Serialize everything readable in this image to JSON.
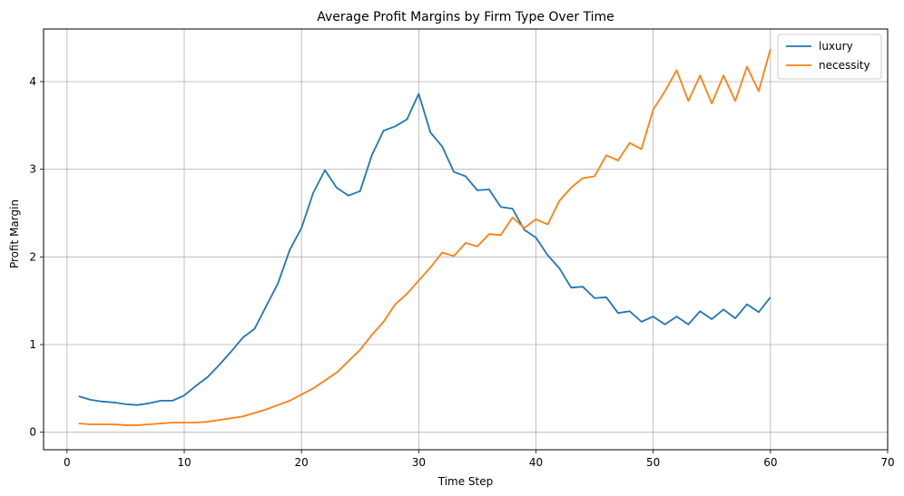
{
  "chart_data": {
    "type": "line",
    "title": "Average Profit Margins by Firm Type Over Time",
    "xlabel": "Time Step",
    "ylabel": "Profit Margin",
    "xlim": [
      -2,
      70
    ],
    "ylim": [
      -0.2,
      4.6
    ],
    "xticks": [
      0,
      10,
      20,
      30,
      40,
      50,
      60,
      70
    ],
    "yticks": [
      0,
      1,
      2,
      3,
      4
    ],
    "grid": true,
    "legend_position": "upper right",
    "x": [
      1,
      2,
      3,
      4,
      5,
      6,
      7,
      8,
      9,
      10,
      11,
      12,
      13,
      14,
      15,
      16,
      17,
      18,
      19,
      20,
      21,
      22,
      23,
      24,
      25,
      26,
      27,
      28,
      29,
      30,
      31,
      32,
      33,
      34,
      35,
      36,
      37,
      38,
      39,
      40,
      41,
      42,
      43,
      44,
      45,
      46,
      47,
      48,
      49,
      50,
      51,
      52,
      53,
      54,
      55,
      56,
      57,
      58,
      59,
      60
    ],
    "series": [
      {
        "name": "luxury",
        "color": "#1f77b4",
        "values": [
          0.41,
          0.37,
          0.35,
          0.34,
          0.32,
          0.31,
          0.33,
          0.36,
          0.36,
          0.42,
          0.53,
          0.63,
          0.77,
          0.92,
          1.08,
          1.18,
          1.44,
          1.7,
          2.08,
          2.33,
          2.73,
          2.99,
          2.79,
          2.7,
          2.75,
          3.16,
          3.44,
          3.49,
          3.57,
          3.86,
          3.42,
          3.26,
          2.97,
          2.92,
          2.76,
          2.77,
          2.57,
          2.55,
          2.31,
          2.22,
          2.02,
          1.87,
          1.65,
          1.66,
          1.53,
          1.54,
          1.36,
          1.38,
          1.26,
          1.32,
          1.23,
          1.32,
          1.23,
          1.38,
          1.29,
          1.4,
          1.3,
          1.46,
          1.37,
          1.54
        ]
      },
      {
        "name": "necessity",
        "color": "#ff7f0e",
        "values": [
          0.1,
          0.09,
          0.09,
          0.09,
          0.08,
          0.08,
          0.09,
          0.1,
          0.11,
          0.11,
          0.11,
          0.12,
          0.14,
          0.16,
          0.18,
          0.22,
          0.26,
          0.31,
          0.36,
          0.43,
          0.5,
          0.59,
          0.68,
          0.81,
          0.94,
          1.11,
          1.26,
          1.46,
          1.58,
          1.73,
          1.88,
          2.05,
          2.01,
          2.16,
          2.12,
          2.26,
          2.25,
          2.45,
          2.33,
          2.43,
          2.37,
          2.64,
          2.79,
          2.9,
          2.92,
          3.16,
          3.1,
          3.3,
          3.23,
          3.68,
          3.89,
          4.13,
          3.78,
          4.07,
          3.75,
          4.07,
          3.78,
          4.17,
          3.89,
          4.37
        ]
      }
    ]
  }
}
